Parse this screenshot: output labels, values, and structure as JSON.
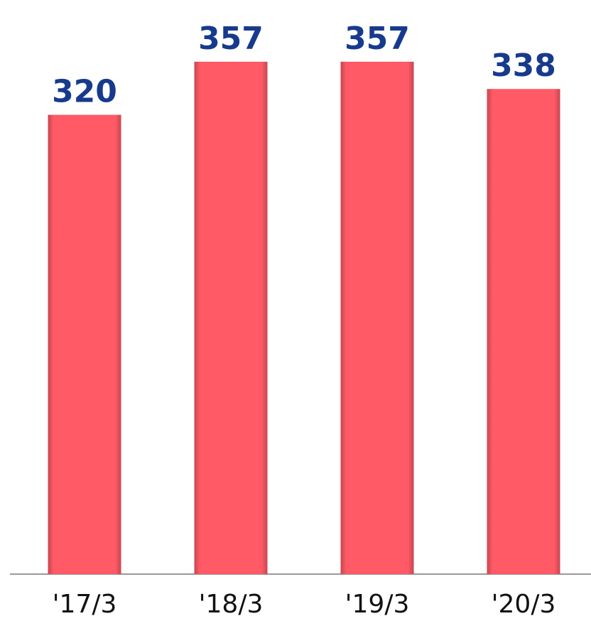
{
  "chart_data": {
    "type": "bar",
    "categories": [
      "'17/3",
      "'18/3",
      "'19/3",
      "'20/3"
    ],
    "values": [
      320,
      357,
      357,
      338
    ],
    "color": "#ff5a66",
    "ylim": [
      0,
      400
    ]
  }
}
